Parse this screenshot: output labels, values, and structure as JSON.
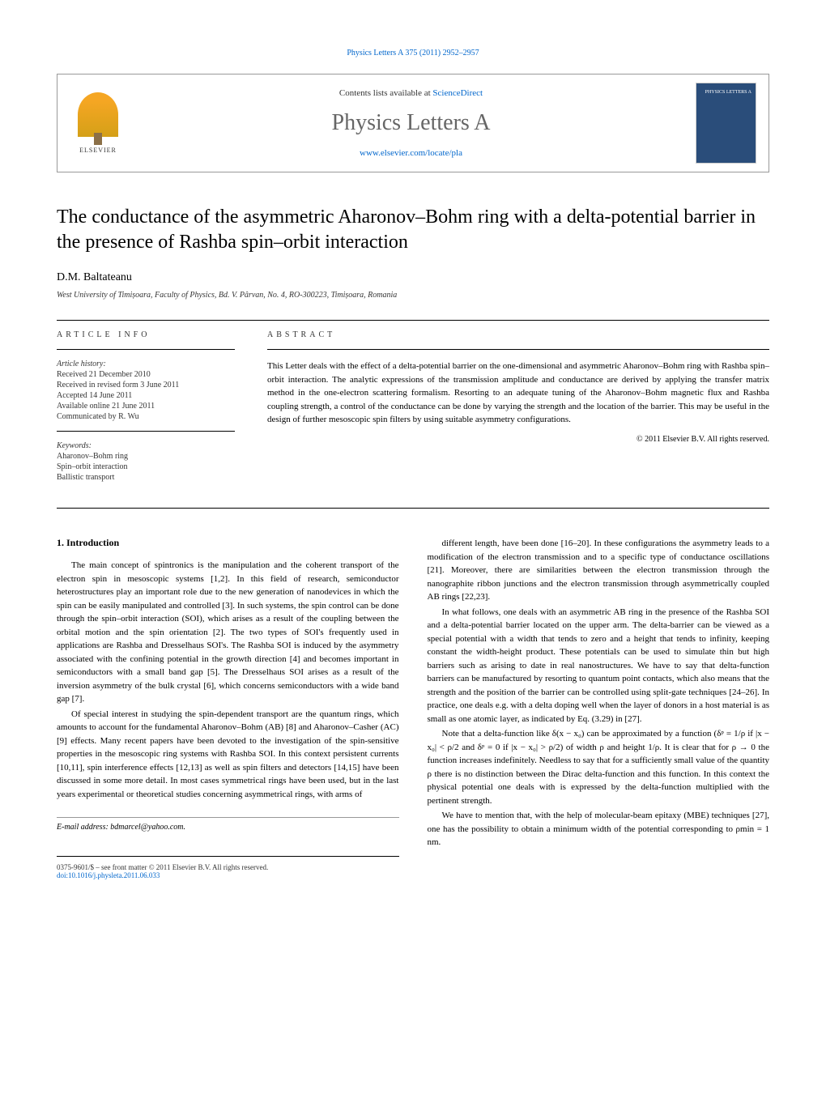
{
  "header": {
    "top_link": "Physics Letters A 375 (2011) 2952–2957",
    "contents_text": "Contents lists available at ",
    "contents_link": "ScienceDirect",
    "journal_name": "Physics Letters A",
    "journal_url": "www.elsevier.com/locate/pla",
    "publisher": "ELSEVIER",
    "cover_label": "PHYSICS LETTERS A"
  },
  "article": {
    "title": "The conductance of the asymmetric Aharonov–Bohm ring with a delta-potential barrier in the presence of Rashba spin–orbit interaction",
    "author": "D.M. Baltateanu",
    "affiliation": "West University of Timișoara, Faculty of Physics, Bd. V. Pârvan, No. 4, RO-300223, Timișoara, Romania"
  },
  "info": {
    "heading": "ARTICLE INFO",
    "history_label": "Article history:",
    "received": "Received 21 December 2010",
    "revised": "Received in revised form 3 June 2011",
    "accepted": "Accepted 14 June 2011",
    "available": "Available online 21 June 2011",
    "communicated": "Communicated by R. Wu",
    "keywords_label": "Keywords:",
    "kw1": "Aharonov–Bohm ring",
    "kw2": "Spin–orbit interaction",
    "kw3": "Ballistic transport"
  },
  "abstract": {
    "heading": "ABSTRACT",
    "text": "This Letter deals with the effect of a delta-potential barrier on the one-dimensional and asymmetric Aharonov–Bohm ring with Rashba spin–orbit interaction. The analytic expressions of the transmission amplitude and conductance are derived by applying the transfer matrix method in the one-electron scattering formalism. Resorting to an adequate tuning of the Aharonov–Bohm magnetic flux and Rashba coupling strength, a control of the conductance can be done by varying the strength and the location of the barrier. This may be useful in the design of further mesoscopic spin filters by using suitable asymmetry configurations.",
    "copyright": "© 2011 Elsevier B.V. All rights reserved."
  },
  "body": {
    "section1_heading": "1. Introduction",
    "p1": "The main concept of spintronics is the manipulation and the coherent transport of the electron spin in mesoscopic systems [1,2]. In this field of research, semiconductor heterostructures play an important role due to the new generation of nanodevices in which the spin can be easily manipulated and controlled [3]. In such systems, the spin control can be done through the spin–orbit interaction (SOI), which arises as a result of the coupling between the orbital motion and the spin orientation [2]. The two types of SOI's frequently used in applications are Rashba and Dresselhaus SOI's. The Rashba SOI is induced by the asymmetry associated with the confining potential in the growth direction [4] and becomes important in semiconductors with a small band gap [5]. The Dresselhaus SOI arises as a result of the inversion asymmetry of the bulk crystal [6], which concerns semiconductors with a wide band gap [7].",
    "p2": "Of special interest in studying the spin-dependent transport are the quantum rings, which amounts to account for the fundamental Aharonov–Bohm (AB) [8] and Aharonov–Casher (AC) [9] effects. Many recent papers have been devoted to the investigation of the spin-sensitive properties in the mesoscopic ring systems with Rashba SOI. In this context persistent currents [10,11], spin interference effects [12,13] as well as spin filters and detectors [14,15] have been discussed in some more detail. In most cases symmetrical rings have been used, but in the last years experimental or theoretical studies concerning asymmetrical rings, with arms of",
    "p3": "different length, have been done [16–20]. In these configurations the asymmetry leads to a modification of the electron transmission and to a specific type of conductance oscillations [21]. Moreover, there are similarities between the electron transmission through the nanographite ribbon junctions and the electron transmission through asymmetrically coupled AB rings [22,23].",
    "p4": "In what follows, one deals with an asymmetric AB ring in the presence of the Rashba SOI and a delta-potential barrier located on the upper arm. The delta-barrier can be viewed as a special potential with a width that tends to zero and a height that tends to infinity, keeping constant the width-height product. These potentials can be used to simulate thin but high barriers such as arising to date in real nanostructures. We have to say that delta-function barriers can be manufactured by resorting to quantum point contacts, which also means that the strength and the position of the barrier can be controlled using split-gate techniques [24–26]. In practice, one deals e.g. with a delta doping well when the layer of donors in a host material is as small as one atomic layer, as indicated by Eq. (3.29) in [27].",
    "p5": "Note that a delta-function like δ(x − x₀) can be approximated by a function (δᵖ = 1/ρ if |x − x₀| < ρ/2 and δᵖ = 0 if |x − x₀| > ρ/2) of width ρ and height 1/ρ. It is clear that for ρ → 0 the function increases indefinitely. Needless to say that for a sufficiently small value of the quantity ρ there is no distinction between the Dirac delta-function and this function. In this context the physical potential one deals with is expressed by the delta-function multiplied with the pertinent strength.",
    "p6": "We have to mention that, with the help of molecular-beam epitaxy (MBE) techniques [27], one has the possibility to obtain a minimum width of the potential corresponding to ρmin = 1 nm."
  },
  "footer": {
    "email_label": "E-mail address:",
    "email": "bdmarcel@yahoo.com.",
    "issn": "0375-9601/$ – see front matter © 2011 Elsevier B.V. All rights reserved.",
    "doi": "doi:10.1016/j.physleta.2011.06.033"
  },
  "colors": {
    "link": "#0066cc",
    "text": "#000000",
    "muted": "#333333",
    "border": "#999999",
    "cover_bg": "#2a4d7a"
  }
}
